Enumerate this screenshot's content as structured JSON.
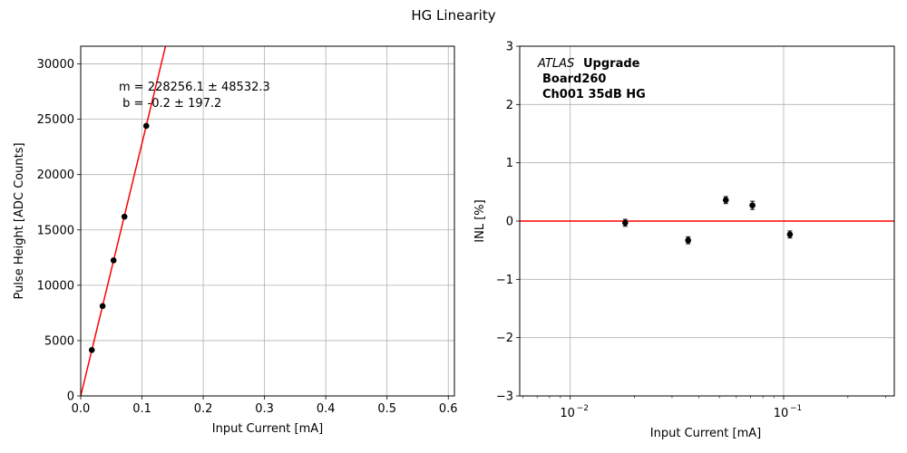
{
  "suptitle": "HG Linearity",
  "chart_data": [
    {
      "type": "scatter",
      "xlabel": "Input Current [mA]",
      "ylabel": "Pulse Height [ADC Counts]",
      "xlim": [
        0,
        0.61
      ],
      "ylim": [
        0,
        31600
      ],
      "x_ticks": [
        0.0,
        0.1,
        0.2,
        0.3,
        0.4,
        0.5,
        0.6
      ],
      "x_tick_labels": [
        "0.0",
        "0.1",
        "0.2",
        "0.3",
        "0.4",
        "0.5",
        "0.6"
      ],
      "y_ticks": [
        0,
        5000,
        10000,
        15000,
        20000,
        25000,
        30000
      ],
      "y_tick_labels": [
        "0",
        "5000",
        "10000",
        "15000",
        "20000",
        "25000",
        "30000"
      ],
      "grid": true,
      "points": [
        {
          "x": 0.0181,
          "y": 4150
        },
        {
          "x": 0.0357,
          "y": 8120
        },
        {
          "x": 0.0536,
          "y": 12250
        },
        {
          "x": 0.0714,
          "y": 16200
        },
        {
          "x": 0.107,
          "y": 24400
        }
      ],
      "fit": {
        "slope": 228256.1,
        "intercept": -0.2,
        "color": "#ff0000"
      },
      "annotation_lines": [
        "m = 228256.1 ± 48532.3",
        " b = -0.2 ± 197.2"
      ]
    },
    {
      "type": "scatter",
      "xlabel": "Input Current [mA]",
      "ylabel": "INL [%]",
      "x_scale": "log",
      "xlim": [
        0.0058,
        0.33
      ],
      "ylim": [
        -3,
        3
      ],
      "x_ticks": [
        0.01,
        0.1
      ],
      "x_tick_labels": [
        "10",
        "10"
      ],
      "x_tick_exponents": [
        "−2",
        "−1"
      ],
      "y_ticks": [
        -3,
        -2,
        -1,
        0,
        1,
        2,
        3
      ],
      "y_tick_labels": [
        "−3",
        "−2",
        "−1",
        "0",
        "1",
        "2",
        "3"
      ],
      "grid": true,
      "points": [
        {
          "x": 0.0181,
          "y": -0.03,
          "err": 0.06
        },
        {
          "x": 0.0357,
          "y": -0.33,
          "err": 0.06
        },
        {
          "x": 0.0536,
          "y": 0.36,
          "err": 0.06
        },
        {
          "x": 0.0714,
          "y": 0.27,
          "err": 0.07
        },
        {
          "x": 0.107,
          "y": -0.23,
          "err": 0.06
        }
      ],
      "reference_line": {
        "y": 0,
        "color": "#ff0000"
      },
      "label_block": {
        "experiment": "ATLAS",
        "tag": "Upgrade",
        "board": "Board260",
        "channel": "Ch001 35dB HG"
      }
    }
  ]
}
